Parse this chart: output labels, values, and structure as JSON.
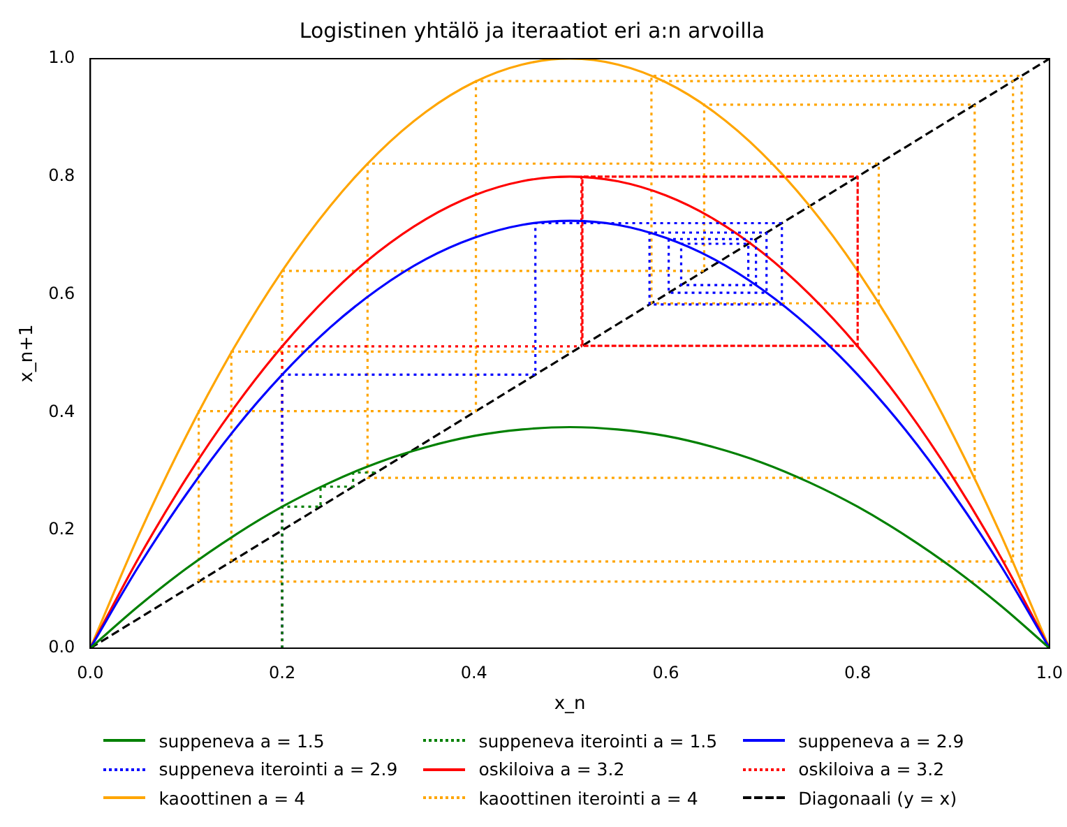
{
  "chart_data": {
    "type": "line",
    "title": "Logistinen yhtälö ja iteraatiot eri a:n arvoilla",
    "xlabel": "x_n",
    "ylabel": "x_n+1",
    "xlim": [
      0,
      1
    ],
    "ylim": [
      0,
      1
    ],
    "xticks": [
      {
        "value": 0,
        "label": "0.0"
      },
      {
        "value": 0.2,
        "label": "0.2"
      },
      {
        "value": 0.4,
        "label": "0.4"
      },
      {
        "value": 0.6,
        "label": "0.6"
      },
      {
        "value": 0.8,
        "label": "0.8"
      },
      {
        "value": 1,
        "label": "1.0"
      }
    ],
    "yticks": [
      {
        "value": 0,
        "label": "0.0"
      },
      {
        "value": 0.2,
        "label": "0.2"
      },
      {
        "value": 0.4,
        "label": "0.4"
      },
      {
        "value": 0.6,
        "label": "0.6"
      },
      {
        "value": 0.8,
        "label": "0.8"
      },
      {
        "value": 1,
        "label": "1.0"
      }
    ],
    "grid": false,
    "legend": "bottom",
    "marker": "none",
    "series": [
      {
        "name": "suppeneva a = 1.5",
        "color": "#008000",
        "line_style": "solid",
        "x": [
          0,
          0.05,
          0.1,
          0.15,
          0.2,
          0.25,
          0.3,
          0.35,
          0.4,
          0.45,
          0.5,
          0.55,
          0.6,
          0.65,
          0.7,
          0.75,
          0.8,
          0.85,
          0.9,
          0.95,
          1
        ],
        "values": [
          0,
          0.071,
          0.135,
          0.191,
          0.24,
          0.281,
          0.315,
          0.341,
          0.36,
          0.371,
          0.375,
          0.371,
          0.36,
          0.341,
          0.315,
          0.281,
          0.24,
          0.191,
          0.135,
          0.071,
          0
        ]
      },
      {
        "name": "suppeneva iterointi a = 1.5",
        "color": "#008000",
        "line_style": "dotted",
        "x": [
          0.2,
          0.2,
          0.24,
          0.24,
          0.274,
          0.274,
          0.298
        ],
        "values": [
          0,
          0.24,
          0.24,
          0.274,
          0.274,
          0.298,
          0.298
        ]
      },
      {
        "name": "suppeneva a = 2.9",
        "color": "#0000ff",
        "line_style": "solid",
        "x": [
          0,
          0.05,
          0.1,
          0.15,
          0.2,
          0.25,
          0.3,
          0.35,
          0.4,
          0.45,
          0.5,
          0.55,
          0.6,
          0.65,
          0.7,
          0.75,
          0.8,
          0.85,
          0.9,
          0.95,
          1
        ],
        "values": [
          0,
          0.138,
          0.261,
          0.37,
          0.464,
          0.544,
          0.609,
          0.66,
          0.696,
          0.718,
          0.725,
          0.718,
          0.696,
          0.66,
          0.609,
          0.544,
          0.464,
          0.37,
          0.261,
          0.138,
          0
        ]
      },
      {
        "name": "suppeneva iterointi a = 2.9",
        "color": "#0000ff",
        "line_style": "dotted",
        "x": [
          0.2,
          0.2,
          0.464,
          0.464,
          0.721,
          0.721,
          0.583,
          0.583,
          0.705,
          0.705,
          0.603,
          0.603,
          0.694,
          0.694,
          0.616,
          0.616,
          0.686,
          0.686
        ],
        "values": [
          0,
          0.464,
          0.464,
          0.721,
          0.721,
          0.583,
          0.583,
          0.705,
          0.705,
          0.603,
          0.603,
          0.694,
          0.694,
          0.616,
          0.616,
          0.686,
          0.686,
          0.624
        ]
      },
      {
        "name": "oskiloiva a = 3.2",
        "color": "#ff0000",
        "line_style": "solid",
        "x": [
          0,
          0.05,
          0.1,
          0.15,
          0.2,
          0.25,
          0.3,
          0.35,
          0.4,
          0.45,
          0.5,
          0.55,
          0.6,
          0.65,
          0.7,
          0.75,
          0.8,
          0.85,
          0.9,
          0.95,
          1
        ],
        "values": [
          0,
          0.152,
          0.288,
          0.408,
          0.512,
          0.6,
          0.672,
          0.728,
          0.768,
          0.792,
          0.8,
          0.792,
          0.768,
          0.728,
          0.672,
          0.6,
          0.512,
          0.408,
          0.288,
          0.152,
          0
        ]
      },
      {
        "name": "oskiloiva a = 3.2",
        "color": "#ff0000",
        "line_style": "dotted",
        "x": [
          0.2,
          0.2,
          0.512,
          0.512,
          0.8,
          0.8,
          0.513,
          0.513,
          0.8,
          0.8,
          0.513,
          0.513
        ],
        "values": [
          0,
          0.512,
          0.512,
          0.8,
          0.8,
          0.513,
          0.513,
          0.8,
          0.8,
          0.513,
          0.513,
          0.8
        ]
      },
      {
        "name": "kaoottinen a = 4",
        "color": "#ffa500",
        "line_style": "solid",
        "x": [
          0,
          0.05,
          0.1,
          0.15,
          0.2,
          0.25,
          0.3,
          0.35,
          0.4,
          0.45,
          0.5,
          0.55,
          0.6,
          0.65,
          0.7,
          0.75,
          0.8,
          0.85,
          0.9,
          0.95,
          1
        ],
        "values": [
          0,
          0.19,
          0.36,
          0.51,
          0.64,
          0.75,
          0.84,
          0.91,
          0.96,
          0.99,
          1,
          0.99,
          0.96,
          0.91,
          0.84,
          0.75,
          0.64,
          0.51,
          0.36,
          0.19,
          0
        ]
      },
      {
        "name": "kaoottinen iterointi a = 4",
        "color": "#ffa500",
        "line_style": "dotted",
        "x": [
          0.2,
          0.2,
          0.64,
          0.64,
          0.922,
          0.922,
          0.289,
          0.289,
          0.822,
          0.822,
          0.585,
          0.585,
          0.971,
          0.971,
          0.113,
          0.113,
          0.402,
          0.402,
          0.962,
          0.962,
          0.147,
          0.147,
          0.503
        ],
        "values": [
          0,
          0.64,
          0.64,
          0.922,
          0.922,
          0.289,
          0.289,
          0.822,
          0.822,
          0.585,
          0.585,
          0.971,
          0.971,
          0.113,
          0.113,
          0.402,
          0.402,
          0.962,
          0.962,
          0.147,
          0.147,
          0.503,
          0.503
        ]
      },
      {
        "name": "Diagonaali (y = x)",
        "color": "#000000",
        "line_style": "dashed",
        "x": [
          0,
          1
        ],
        "values": [
          0,
          1
        ]
      }
    ]
  }
}
